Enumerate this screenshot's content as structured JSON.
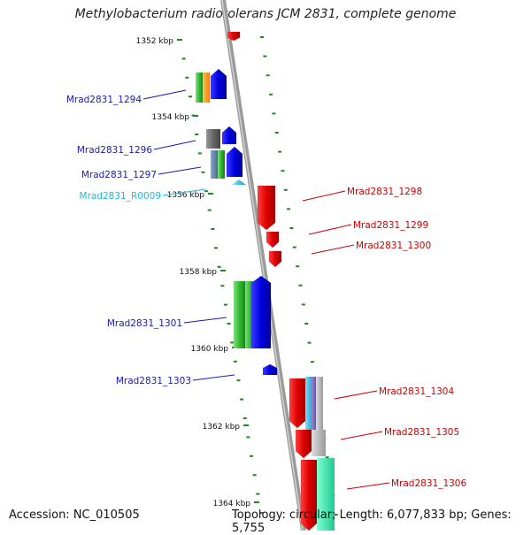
{
  "title": "Methylobacterium radiotolerans JCM 2831, complete genome",
  "footer": {
    "accession": "Accession: NC_010505",
    "topology": "Topology: circular; Length: 6,077,833 bp; Genes: 5,755"
  },
  "colors": {
    "backbone": "#8a8a8a",
    "tick": "#1a8a1a",
    "forward_label": "#1a1ab0",
    "reverse_label": "#cc0000",
    "rna_label": "#22b8d8"
  },
  "kbp_ticks": [
    "1352 kbp",
    "1354 kbp",
    "1356 kbp",
    "1358 kbp",
    "1360 kbp",
    "1362 kbp",
    "1364 kbp"
  ],
  "genes": [
    {
      "name": "Mrad2831_1294",
      "strand": "forward"
    },
    {
      "name": "Mrad2831_1296",
      "strand": "forward"
    },
    {
      "name": "Mrad2831_1297",
      "strand": "forward"
    },
    {
      "name": "Mrad2831_R0009",
      "strand": "rna"
    },
    {
      "name": "Mrad2831_1298",
      "strand": "reverse"
    },
    {
      "name": "Mrad2831_1299",
      "strand": "reverse"
    },
    {
      "name": "Mrad2831_1300",
      "strand": "reverse"
    },
    {
      "name": "Mrad2831_1301",
      "strand": "forward"
    },
    {
      "name": "Mrad2831_1303",
      "strand": "forward"
    },
    {
      "name": "Mrad2831_1304",
      "strand": "reverse"
    },
    {
      "name": "Mrad2831_1305",
      "strand": "reverse"
    },
    {
      "name": "Mrad2831_1306",
      "strand": "reverse"
    }
  ]
}
